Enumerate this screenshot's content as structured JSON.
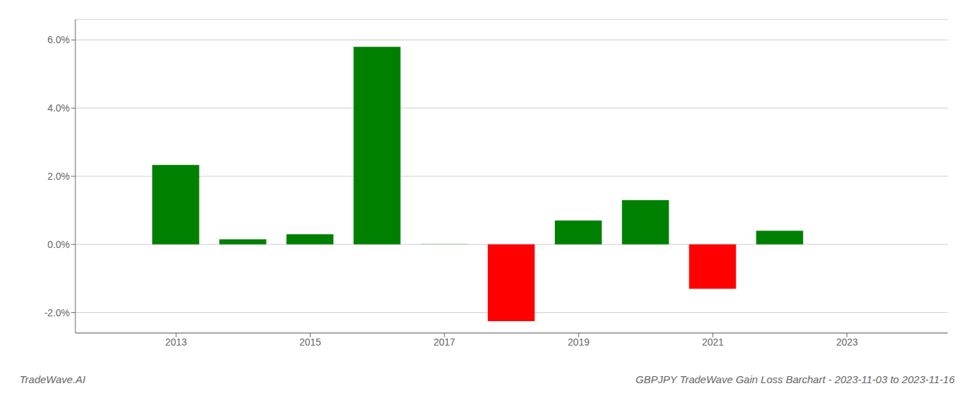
{
  "chart_data": {
    "type": "bar",
    "title": "GBPJPY TradeWave Gain Loss Barchart - 2023-11-03 to 2023-11-16",
    "annotations": [
      "TradeWave.AI"
    ],
    "x": [
      2013,
      2014,
      2015,
      2016,
      2017,
      2018,
      2019,
      2020,
      2021,
      2022
    ],
    "values": [
      0.0233,
      0.0015,
      0.003,
      0.058,
      -5e-05,
      -0.0225,
      0.007,
      0.013,
      -0.013,
      0.004
    ],
    "colors": [
      "#008000",
      "#008000",
      "#008000",
      "#008000",
      "#008000",
      "#ff0000",
      "#008000",
      "#008000",
      "#ff0000",
      "#008000"
    ],
    "xlim": [
      2011.5,
      2024.5
    ],
    "xticks": [
      2013,
      2015,
      2017,
      2019,
      2021,
      2023
    ],
    "ylim": [
      -0.026,
      0.066
    ],
    "yticks": [
      {
        "value": -0.02,
        "label": "-2.0%"
      },
      {
        "value": 0.0,
        "label": "0.0%"
      },
      {
        "value": 0.02,
        "label": "2.0%"
      },
      {
        "value": 0.04,
        "label": "4.0%"
      },
      {
        "value": 0.06,
        "label": "6.0%"
      }
    ],
    "grid": true
  }
}
